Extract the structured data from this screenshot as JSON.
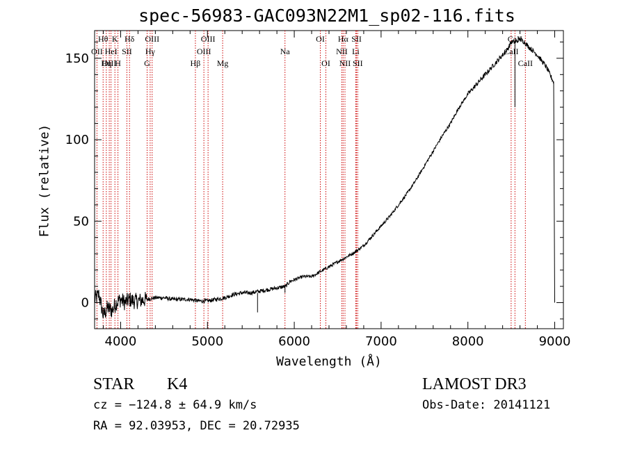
{
  "chart_data": {
    "type": "line",
    "title": "spec-56983-GAC093N22M1_sp02-116.fits",
    "xlabel": "Wavelength (Å)",
    "ylabel": "Flux (relative)",
    "xlim": [
      3700,
      9100
    ],
    "ylim": [
      -16,
      167
    ],
    "xticks": [
      4000,
      5000,
      6000,
      7000,
      8000,
      9000
    ],
    "yticks": [
      0,
      50,
      100,
      150
    ],
    "xtick_labels": [
      "4000",
      "5000",
      "6000",
      "7000",
      "8000",
      "9000"
    ],
    "ytick_labels": [
      "0",
      "50",
      "100",
      "150"
    ],
    "grid": false,
    "series": [
      {
        "name": "spectrum",
        "x": [
          3700,
          3750,
          3800,
          3850,
          3900,
          3950,
          4000,
          4050,
          4100,
          4150,
          4200,
          4300,
          4400,
          4500,
          4600,
          4700,
          4800,
          4900,
          5000,
          5100,
          5200,
          5300,
          5400,
          5500,
          5600,
          5700,
          5800,
          5900,
          5950,
          6000,
          6100,
          6200,
          6300,
          6400,
          6500,
          6600,
          6700,
          6800,
          6900,
          7000,
          7100,
          7200,
          7300,
          7400,
          7500,
          7600,
          7700,
          7800,
          7900,
          8000,
          8100,
          8200,
          8300,
          8400,
          8450,
          8500,
          8550,
          8600,
          8650,
          8700,
          8800,
          8900,
          8990,
          9000
        ],
        "y": [
          2,
          5,
          -8,
          -3,
          -5,
          0,
          2,
          0,
          2,
          1,
          1,
          2,
          3,
          3,
          2,
          2,
          2,
          1,
          1,
          2,
          3,
          5,
          6,
          6,
          7,
          8,
          9,
          10,
          13,
          14,
          16,
          16,
          19,
          22,
          25,
          28,
          31,
          35,
          41,
          47,
          53,
          60,
          67,
          75,
          84,
          93,
          102,
          110,
          120,
          128,
          134,
          140,
          146,
          152,
          155,
          160,
          160,
          162,
          160,
          157,
          152,
          145,
          135,
          0
        ]
      }
    ],
    "line_markers": [
      {
        "label": "Hθ",
        "wavelength": 3798,
        "row": 1
      },
      {
        "label": "OII",
        "wavelength": 3727,
        "row": 2
      },
      {
        "label": "OIII",
        "wavelength": 3869,
        "row": 3
      },
      {
        "label": "Hη",
        "wavelength": 3835,
        "row": 3
      },
      {
        "label": "HeI",
        "wavelength": 3889,
        "row": 2
      },
      {
        "label": "K",
        "wavelength": 3934,
        "row": 1
      },
      {
        "label": "H",
        "wavelength": 3969,
        "row": 3
      },
      {
        "label": "SII",
        "wavelength": 4072,
        "row": 2
      },
      {
        "label": "Hδ",
        "wavelength": 4102,
        "row": 1
      },
      {
        "label": "OIII",
        "wavelength": 4363,
        "row": 1
      },
      {
        "label": "Hγ",
        "wavelength": 4340,
        "row": 2
      },
      {
        "label": "G",
        "wavelength": 4305,
        "row": 3
      },
      {
        "label": "Hβ",
        "wavelength": 4861,
        "row": 3
      },
      {
        "label": "OIII",
        "wavelength": 5007,
        "row": 1
      },
      {
        "label": "OIII",
        "wavelength": 4959,
        "row": 2
      },
      {
        "label": "Mg",
        "wavelength": 5175,
        "row": 3
      },
      {
        "label": "Na",
        "wavelength": 5893,
        "row": 2
      },
      {
        "label": "OI",
        "wavelength": 6300,
        "row": 1
      },
      {
        "label": "OI",
        "wavelength": 6364,
        "row": 3
      },
      {
        "label": "Hα",
        "wavelength": 6563,
        "row": 1
      },
      {
        "label": "NII",
        "wavelength": 6548,
        "row": 2
      },
      {
        "label": "NII",
        "wavelength": 6584,
        "row": 3
      },
      {
        "label": "SII",
        "wavelength": 6717,
        "row": 1
      },
      {
        "label": "Li",
        "wavelength": 6708,
        "row": 2
      },
      {
        "label": "SII",
        "wavelength": 6731,
        "row": 3
      },
      {
        "label": "CaII",
        "wavelength": 8542,
        "row": 1
      },
      {
        "label": "CaII",
        "wavelength": 8498,
        "row": 2
      },
      {
        "label": "CaII",
        "wavelength": 8662,
        "row": 3
      }
    ]
  },
  "info": {
    "object_class": "STAR",
    "subclass": "K4",
    "cz": "cz = −124.8 ± 64.9 km/s",
    "radec": "RA =  92.03953, DEC =  20.72935",
    "survey": "LAMOST DR3",
    "obs_date": "Obs-Date: 20141121"
  },
  "colors": {
    "spectrum": "#000000",
    "marker": "#cc0000",
    "axis": "#000000"
  }
}
